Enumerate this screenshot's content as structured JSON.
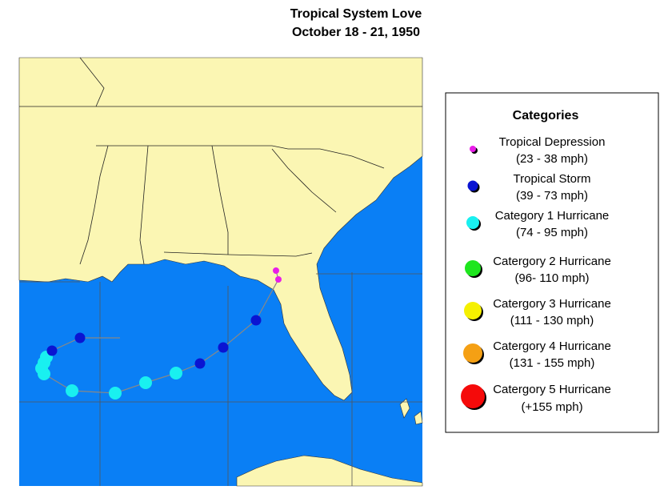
{
  "title": "Tropical System Love",
  "subtitle": "October 18 -  21, 1950",
  "legend": {
    "title": "Categories",
    "items": [
      {
        "name": "Tropical Depression",
        "range": "(23 - 38 mph)",
        "color": "#e81ee8"
      },
      {
        "name": "Tropical Storm",
        "range": "(39 - 73 mph)",
        "color": "#0a14d2"
      },
      {
        "name": "Category 1 Hurricane",
        "range": "(74 - 95 mph)",
        "color": "#19f0f0"
      },
      {
        "name": "Catergory 2 Hurricane",
        "range": "(96- 110 mph)",
        "color": "#1ee61e"
      },
      {
        "name": "Catergory 3 Hurricane",
        "range": "(111 - 130 mph)",
        "color": "#f5f000"
      },
      {
        "name": "Catergory 4 Hurricane",
        "range": "(131 - 155 mph)",
        "color": "#f5a014"
      },
      {
        "name": "Catergory 5 Hurricane",
        "range": "(+155 mph)",
        "color": "#f50a0a"
      }
    ]
  }
}
